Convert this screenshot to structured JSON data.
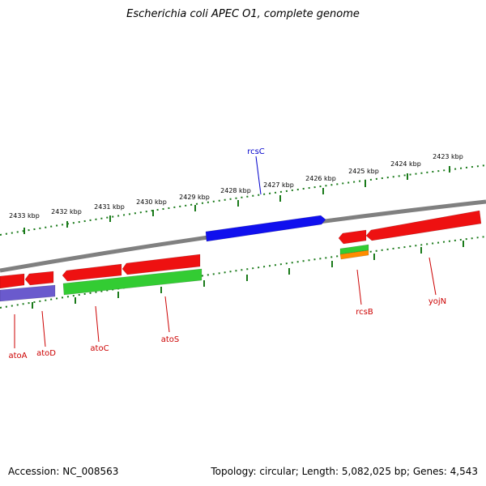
{
  "title": "Escherichia coli APEC O1, complete genome",
  "accession": "Accession: NC_008563",
  "summary": "Topology: circular; Length: 5,082,025 bp; Genes: 4,543",
  "colors": {
    "backbone": "#808080",
    "ticks": "#1a7a1a",
    "gene_red": "#ee1111",
    "gene_blue": "#1010ee",
    "gene_green": "#33cc33",
    "gene_purple": "#6a5acd",
    "gene_orange": "#ff8c00",
    "label_red": "#cc0000",
    "label_blue": "#0000cc"
  },
  "kbp_labels": [
    "2433 kbp",
    "2432 kbp",
    "2431 kbp",
    "2430 kbp",
    "2429 kbp",
    "2428 kbp",
    "2427 kbp",
    "2426 kbp",
    "2425 kbp",
    "2424 kbp",
    "2423 kbp"
  ],
  "gene_labels": [
    {
      "name": "rcsC",
      "color": "blue"
    },
    {
      "name": "atoA",
      "color": "red"
    },
    {
      "name": "atoD",
      "color": "red"
    },
    {
      "name": "atoC",
      "color": "red"
    },
    {
      "name": "atoS",
      "color": "red"
    },
    {
      "name": "rcsB",
      "color": "red"
    },
    {
      "name": "yojN",
      "color": "red"
    }
  ]
}
